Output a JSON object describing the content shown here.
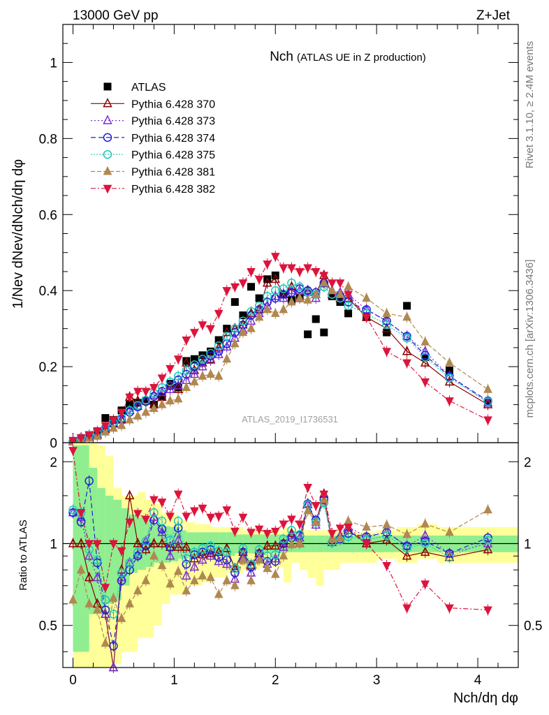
{
  "header": {
    "energy_label": "13000 GeV pp",
    "process_label": "Z+Jet",
    "side_label_top": "Rivet 3.1.10, ≥ 2.4M events",
    "side_label_bottom": "mcplots.cern.ch [arXiv:1306.3436]",
    "analysis_id": "ATLAS_2019_I1736531"
  },
  "colors": {
    "ATLAS": "#000000",
    "Pythia 6.428 370": "#8b0000",
    "Pythia 6.428 373": "#7b2fd0",
    "Pythia 6.428 374": "#1f1fd6",
    "Pythia 6.428 375": "#20c8b8",
    "Pythia 6.428 381": "#b08850",
    "Pythia 6.428 382": "#dc143c",
    "band_inner": "#90ee90",
    "band_outer": "#ffff99"
  },
  "chart_data": [
    {
      "type": "scatter",
      "title_main": "Nch",
      "title_sub": "(ATLAS UE in Z production)",
      "ylabel": "1/Nev dNev/dNch/dη dφ",
      "ylim": [
        0,
        1.1
      ],
      "yticks": [
        "0",
        "0.2",
        "0.4",
        "0.6",
        "0.8",
        "1"
      ],
      "xlim": [
        -0.1,
        4.4
      ],
      "legend_position": "top-left",
      "x": [
        0.0,
        0.08,
        0.16,
        0.24,
        0.32,
        0.4,
        0.48,
        0.56,
        0.64,
        0.72,
        0.8,
        0.88,
        0.96,
        1.04,
        1.12,
        1.2,
        1.28,
        1.36,
        1.44,
        1.52,
        1.6,
        1.68,
        1.76,
        1.84,
        1.92,
        2.0,
        2.08,
        2.16,
        2.24,
        2.32,
        2.4,
        2.48,
        2.56,
        2.64,
        2.72,
        2.9,
        3.1,
        3.3,
        3.48,
        3.72,
        4.1
      ],
      "series": [
        {
          "name": "ATLAS",
          "marker": "square",
          "values": [
            0.003,
            0.01,
            0.02,
            0.03,
            0.065,
            0.06,
            0.085,
            0.1,
            0.105,
            0.11,
            0.1,
            0.12,
            0.155,
            0.145,
            0.215,
            0.22,
            0.23,
            0.24,
            0.27,
            0.3,
            0.37,
            0.335,
            0.41,
            0.38,
            0.43,
            0.44,
            0.39,
            0.375,
            0.38,
            0.285,
            0.325,
            0.29,
            0.385,
            0.37,
            0.34,
            0.33,
            0.29,
            0.36,
            0.225,
            0.19,
            0.105
          ]
        },
        {
          "name": "Pythia 6.428 370",
          "marker": "triangle-up-open",
          "dash": "",
          "values": [
            0.003,
            0.01,
            0.015,
            0.02,
            0.035,
            0.05,
            0.06,
            0.12,
            0.11,
            0.11,
            0.1,
            0.12,
            0.15,
            0.14,
            0.21,
            0.19,
            0.21,
            0.22,
            0.25,
            0.29,
            0.3,
            0.31,
            0.34,
            0.35,
            0.42,
            0.43,
            0.39,
            0.41,
            0.38,
            0.4,
            0.39,
            0.44,
            0.39,
            0.38,
            0.38,
            0.33,
            0.3,
            0.24,
            0.21,
            0.16,
            0.1
          ]
        },
        {
          "name": "Pythia 6.428 373",
          "marker": "triangle-up-open",
          "dash": "2,3",
          "values": [
            0.004,
            0.013,
            0.018,
            0.023,
            0.038,
            0.052,
            0.063,
            0.085,
            0.096,
            0.112,
            0.125,
            0.132,
            0.14,
            0.15,
            0.164,
            0.18,
            0.2,
            0.217,
            0.232,
            0.252,
            0.275,
            0.296,
            0.32,
            0.34,
            0.36,
            0.385,
            0.38,
            0.4,
            0.4,
            0.395,
            0.38,
            0.42,
            0.4,
            0.395,
            0.39,
            0.35,
            0.32,
            0.28,
            0.24,
            0.175,
            0.105
          ]
        },
        {
          "name": "Pythia 6.428 374",
          "marker": "circle-open",
          "dash": "7,4",
          "values": [
            0.004,
            0.012,
            0.017,
            0.025,
            0.037,
            0.05,
            0.062,
            0.08,
            0.094,
            0.108,
            0.122,
            0.135,
            0.15,
            0.165,
            0.18,
            0.2,
            0.215,
            0.228,
            0.24,
            0.26,
            0.29,
            0.31,
            0.335,
            0.35,
            0.37,
            0.38,
            0.39,
            0.395,
            0.405,
            0.4,
            0.395,
            0.42,
            0.39,
            0.385,
            0.37,
            0.35,
            0.32,
            0.28,
            0.23,
            0.175,
            0.11
          ]
        },
        {
          "name": "Pythia 6.428 375",
          "marker": "circle-open",
          "dash": "2,2",
          "values": [
            0.004,
            0.013,
            0.019,
            0.026,
            0.04,
            0.053,
            0.066,
            0.085,
            0.098,
            0.112,
            0.13,
            0.145,
            0.16,
            0.175,
            0.19,
            0.205,
            0.22,
            0.235,
            0.255,
            0.28,
            0.3,
            0.32,
            0.345,
            0.36,
            0.385,
            0.4,
            0.405,
            0.42,
            0.41,
            0.395,
            0.39,
            0.41,
            0.39,
            0.38,
            0.36,
            0.34,
            0.31,
            0.275,
            0.225,
            0.17,
            0.108
          ]
        },
        {
          "name": "Pythia 6.428 381",
          "marker": "triangle-up-filled",
          "dash": "6,3",
          "values": [
            0.002,
            0.008,
            0.012,
            0.017,
            0.028,
            0.038,
            0.045,
            0.06,
            0.07,
            0.08,
            0.09,
            0.1,
            0.11,
            0.115,
            0.145,
            0.16,
            0.175,
            0.18,
            0.175,
            0.22,
            0.26,
            0.29,
            0.3,
            0.33,
            0.35,
            0.34,
            0.35,
            0.37,
            0.38,
            0.375,
            0.39,
            0.42,
            0.4,
            0.39,
            0.41,
            0.38,
            0.34,
            0.33,
            0.265,
            0.21,
            0.14
          ]
        },
        {
          "name": "Pythia 6.428 382",
          "marker": "triangle-down-filled",
          "dash": "7,3,2,3",
          "values": [
            0.006,
            0.013,
            0.02,
            0.03,
            0.045,
            0.06,
            0.08,
            0.12,
            0.135,
            0.135,
            0.145,
            0.17,
            0.195,
            0.22,
            0.27,
            0.29,
            0.31,
            0.3,
            0.34,
            0.4,
            0.41,
            0.42,
            0.45,
            0.43,
            0.47,
            0.49,
            0.46,
            0.46,
            0.45,
            0.46,
            0.45,
            0.44,
            0.42,
            0.42,
            0.39,
            0.33,
            0.24,
            0.21,
            0.16,
            0.11,
            0.06
          ]
        }
      ]
    },
    {
      "type": "scatter",
      "ylabel": "Ratio to ATLAS",
      "ylim": [
        0.35,
        2.35
      ],
      "log_scale_y": true,
      "yticks": [
        "0.5",
        "1",
        "2"
      ],
      "xlabel": "Nch/dη dφ",
      "xticks": [
        "0",
        "1",
        "2",
        "3",
        "4"
      ],
      "xlim": [
        -0.1,
        4.4
      ],
      "reference_line": 1,
      "bands": {
        "edges": [
          0.0,
          0.08,
          0.16,
          0.24,
          0.32,
          0.4,
          0.48,
          0.56,
          0.64,
          0.72,
          0.8,
          0.88,
          0.96,
          1.04,
          1.12,
          1.2,
          1.28,
          1.36,
          1.44,
          1.52,
          1.6,
          1.68,
          1.76,
          1.84,
          1.92,
          2.0,
          2.08,
          2.16,
          2.24,
          2.32,
          2.4,
          2.48,
          2.56,
          2.64,
          2.8,
          3.0,
          3.2,
          3.4,
          3.6,
          3.84,
          4.4
        ],
        "inner_low": [
          0.4,
          0.4,
          0.55,
          0.55,
          0.6,
          0.62,
          0.7,
          0.78,
          0.8,
          0.82,
          0.85,
          0.85,
          0.86,
          0.88,
          0.9,
          0.9,
          0.9,
          0.9,
          0.9,
          0.9,
          0.92,
          0.92,
          0.92,
          0.92,
          0.92,
          0.92,
          0.93,
          0.93,
          0.93,
          0.93,
          0.93,
          0.93,
          0.93,
          0.93,
          0.93,
          0.93,
          0.93,
          0.93,
          0.93,
          0.93
        ],
        "inner_high": [
          2.3,
          2.3,
          1.9,
          1.6,
          1.5,
          1.45,
          1.35,
          1.28,
          1.25,
          1.22,
          1.18,
          1.16,
          1.15,
          1.12,
          1.1,
          1.1,
          1.1,
          1.1,
          1.1,
          1.1,
          1.08,
          1.08,
          1.08,
          1.08,
          1.08,
          1.08,
          1.07,
          1.07,
          1.07,
          1.07,
          1.07,
          1.07,
          1.07,
          1.07,
          1.07,
          1.07,
          1.07,
          1.07,
          1.07,
          1.07
        ],
        "outer_low": [
          0.35,
          0.35,
          0.35,
          0.35,
          0.35,
          0.36,
          0.4,
          0.4,
          0.45,
          0.45,
          0.5,
          0.6,
          0.65,
          0.65,
          0.7,
          0.7,
          0.72,
          0.75,
          0.75,
          0.78,
          0.78,
          0.8,
          0.8,
          0.82,
          0.82,
          0.82,
          0.72,
          0.85,
          0.8,
          0.75,
          0.7,
          0.8,
          0.8,
          0.85,
          0.85,
          0.88,
          0.85,
          0.88,
          0.85,
          0.85
        ],
        "outer_high": [
          2.35,
          2.35,
          2.35,
          2.3,
          2.1,
          1.6,
          1.5,
          1.5,
          1.55,
          1.45,
          1.4,
          1.3,
          1.28,
          1.22,
          1.2,
          1.18,
          1.18,
          1.15,
          1.15,
          1.15,
          1.15,
          1.12,
          1.12,
          1.12,
          1.12,
          1.12,
          1.15,
          1.12,
          1.12,
          1.12,
          1.12,
          1.12,
          1.12,
          1.1,
          1.1,
          1.12,
          1.15,
          1.18,
          1.15,
          1.15
        ]
      },
      "series": [
        {
          "name": "Pythia 6.428 370",
          "values": [
            1.0,
            1.0,
            0.75,
            0.6,
            0.55,
            0.3,
            0.8,
            1.5,
            1.0,
            0.95,
            1.0,
            1.0,
            0.97,
            0.97,
            0.97,
            0.88,
            0.91,
            0.92,
            0.93,
            0.96,
            0.81,
            0.93,
            0.83,
            0.92,
            0.98,
            0.98,
            1.0,
            1.09,
            1.0,
            1.4,
            1.2,
            1.52,
            1.01,
            1.03,
            1.12,
            1.0,
            1.03,
            0.9,
            0.93,
            0.89,
            0.95
          ]
        },
        {
          "name": "Pythia 6.428 373",
          "values": [
            1.3,
            1.25,
            0.9,
            0.75,
            0.55,
            0.3,
            0.75,
            0.85,
            0.91,
            1.02,
            1.25,
            1.1,
            0.9,
            1.03,
            0.76,
            0.82,
            0.87,
            0.9,
            0.86,
            0.84,
            0.74,
            0.88,
            0.78,
            0.89,
            0.84,
            0.88,
            0.97,
            1.07,
            1.05,
            1.39,
            1.17,
            1.45,
            1.04,
            1.07,
            1.15,
            1.06,
            1.1,
            0.98,
            1.07,
            0.92,
            1.0
          ]
        },
        {
          "name": "Pythia 6.428 374",
          "values": [
            1.3,
            1.2,
            1.7,
            0.85,
            0.57,
            0.42,
            0.73,
            0.8,
            0.9,
            0.98,
            1.22,
            1.13,
            0.97,
            1.14,
            0.84,
            0.91,
            0.93,
            0.95,
            0.89,
            0.87,
            0.78,
            0.93,
            0.82,
            0.92,
            0.86,
            0.86,
            1.0,
            1.05,
            1.07,
            1.4,
            1.22,
            1.45,
            1.01,
            1.04,
            1.09,
            1.06,
            1.1,
            0.98,
            1.02,
            0.92,
            1.05
          ]
        },
        {
          "name": "Pythia 6.428 375",
          "values": [
            1.33,
            1.3,
            0.95,
            0.87,
            0.62,
            0.55,
            0.78,
            0.85,
            0.93,
            1.02,
            1.3,
            1.21,
            1.03,
            1.21,
            0.88,
            0.93,
            0.96,
            0.98,
            0.94,
            0.93,
            0.81,
            0.96,
            0.84,
            0.95,
            0.9,
            0.91,
            1.04,
            1.12,
            1.08,
            1.39,
            1.2,
            1.41,
            1.01,
            1.03,
            1.06,
            1.03,
            1.07,
            0.96,
            1.0,
            0.89,
            1.03
          ]
        },
        {
          "name": "Pythia 6.428 381",
          "values": [
            0.62,
            0.8,
            0.6,
            0.57,
            0.43,
            0.63,
            0.53,
            0.6,
            0.67,
            0.73,
            0.9,
            0.83,
            0.71,
            0.79,
            0.67,
            0.73,
            0.76,
            0.75,
            0.65,
            0.73,
            0.7,
            0.87,
            0.73,
            0.87,
            0.81,
            0.77,
            0.9,
            0.99,
            1.0,
            1.32,
            1.2,
            1.45,
            1.04,
            1.05,
            1.21,
            1.15,
            1.17,
            1.08,
            1.18,
            1.1,
            1.33
          ]
        },
        {
          "name": "Pythia 6.428 382",
          "values": [
            2.2,
            1.3,
            1.0,
            1.0,
            0.69,
            1.0,
            0.94,
            1.2,
            1.29,
            1.23,
            1.45,
            1.42,
            1.26,
            1.52,
            1.26,
            1.32,
            1.35,
            1.25,
            1.26,
            1.33,
            1.11,
            1.25,
            1.1,
            1.13,
            1.09,
            1.11,
            1.18,
            1.23,
            1.18,
            1.61,
            1.38,
            1.52,
            1.09,
            1.14,
            1.15,
            1.0,
            0.83,
            0.58,
            0.71,
            0.58,
            0.57
          ]
        }
      ]
    }
  ]
}
